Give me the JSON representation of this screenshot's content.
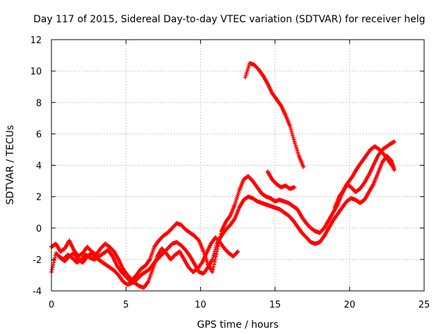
{
  "chart_data": {
    "type": "scatter",
    "title": "Day 117 of 2015, Sidereal Day-to-day VTEC variation (SDTVAR) for receiver helg",
    "xlabel": "GPS time / hours",
    "ylabel": "SDTVAR / TECUs",
    "xlim": [
      0,
      25
    ],
    "ylim": [
      -4,
      12
    ],
    "xticks": [
      "0",
      "5",
      "10",
      "15",
      "20",
      "25"
    ],
    "yticks": [
      "-4",
      "-2",
      "0",
      "2",
      "4",
      "6",
      "8",
      "10",
      "12"
    ],
    "grid": true,
    "marker": "plus",
    "color": "#ff0000",
    "series": [
      {
        "x": [
          0.0,
          0.3,
          0.6,
          0.9,
          1.2,
          1.5,
          1.8,
          2.1,
          2.4,
          2.7,
          3.0,
          3.3,
          3.6,
          3.9,
          4.2,
          4.5,
          4.8,
          5.1,
          5.4,
          5.7,
          6.0,
          6.3,
          6.6,
          6.9,
          7.2,
          7.5,
          7.8,
          8.1,
          8.4,
          8.7,
          9.0,
          9.3,
          9.6,
          9.9,
          10.2,
          10.5,
          10.8,
          11.1,
          11.4,
          11.7,
          12.0,
          12.3,
          12.6,
          12.9,
          13.2,
          13.5,
          13.8,
          14.1,
          14.4,
          14.7,
          15.0,
          15.3,
          15.6,
          15.9,
          16.2,
          16.5,
          16.8,
          17.1,
          17.4,
          17.7,
          18.0,
          18.3,
          18.6,
          18.9,
          19.2,
          19.5,
          19.8,
          20.1,
          20.4,
          20.7,
          21.0,
          21.3,
          21.6,
          21.9,
          22.2,
          22.5,
          22.8,
          23.0
        ],
        "y": [
          -1.2,
          -1.0,
          -1.5,
          -1.3,
          -0.8,
          -1.4,
          -1.8,
          -1.6,
          -1.2,
          -1.5,
          -1.7,
          -1.3,
          -1.0,
          -1.2,
          -1.5,
          -2.0,
          -2.6,
          -3.0,
          -3.3,
          -3.0,
          -2.6,
          -2.4,
          -2.0,
          -1.2,
          -0.8,
          -0.5,
          -0.3,
          0.0,
          0.3,
          0.2,
          -0.1,
          -0.3,
          -0.5,
          -0.8,
          -1.5,
          -2.3,
          -2.8,
          -1.5,
          -0.2,
          0.4,
          0.8,
          1.5,
          2.4,
          3.1,
          3.3,
          3.0,
          2.6,
          2.2,
          2.0,
          1.9,
          1.7,
          1.8,
          1.7,
          1.6,
          1.4,
          1.2,
          0.7,
          0.3,
          0.0,
          -0.2,
          -0.3,
          0.0,
          0.5,
          1.0,
          1.5,
          2.2,
          2.8,
          2.6,
          2.3,
          2.5,
          2.9,
          3.4,
          4.0,
          4.6,
          5.0,
          5.2,
          5.4,
          5.5
        ]
      },
      {
        "x": [
          0.0,
          0.3,
          0.6,
          0.9,
          1.2,
          1.5,
          1.8,
          2.1,
          2.4,
          2.7,
          3.0,
          3.3,
          3.6,
          3.9,
          4.2,
          4.5,
          4.8,
          5.1,
          5.4,
          5.7,
          6.0,
          6.3,
          6.6,
          6.9,
          7.2,
          7.5,
          7.8,
          8.1,
          8.4,
          8.7,
          9.0,
          9.3,
          9.6,
          9.9,
          10.2,
          10.5,
          10.8,
          11.1,
          11.4,
          11.7,
          12.0,
          12.3,
          12.6,
          12.9,
          13.2,
          13.5,
          13.8,
          14.1,
          14.4,
          14.7,
          15.0,
          15.3,
          15.6,
          15.9,
          16.2,
          16.5,
          16.8,
          17.1,
          17.4,
          17.7,
          18.0,
          18.3,
          18.6,
          18.9,
          19.2,
          19.5,
          19.8,
          20.1,
          20.4,
          20.7,
          21.0,
          21.3,
          21.6,
          21.9,
          22.2,
          22.5,
          22.8,
          23.0
        ],
        "y": [
          -2.8,
          -1.6,
          -1.9,
          -2.1,
          -1.8,
          -1.6,
          -2.0,
          -2.2,
          -1.8,
          -1.6,
          -1.9,
          -2.1,
          -2.3,
          -2.5,
          -2.7,
          -3.0,
          -3.4,
          -3.6,
          -3.5,
          -3.3,
          -3.0,
          -2.8,
          -2.6,
          -2.2,
          -1.9,
          -1.6,
          -1.3,
          -1.0,
          -0.9,
          -1.1,
          -1.4,
          -1.8,
          -2.3,
          -2.8,
          -2.9,
          -2.5,
          -2.0,
          -1.0,
          -0.5,
          -0.1,
          0.2,
          0.6,
          1.3,
          1.8,
          2.0,
          1.9,
          1.7,
          1.6,
          1.5,
          1.4,
          1.3,
          1.2,
          1.0,
          0.8,
          0.5,
          0.1,
          -0.3,
          -0.6,
          -0.9,
          -1.0,
          -0.9,
          -0.5,
          0.0,
          0.5,
          0.9,
          1.3,
          1.7,
          1.9,
          1.8,
          1.6,
          1.8,
          2.3,
          2.8,
          3.5,
          4.2,
          4.6,
          4.3,
          3.7
        ]
      },
      {
        "x": [
          0.5,
          0.8,
          1.1,
          1.4,
          1.7,
          2.0,
          2.3,
          2.6,
          2.9,
          3.2,
          3.5,
          3.8,
          4.1,
          4.4,
          4.7,
          5.0,
          5.3,
          5.6,
          5.9,
          6.2,
          6.5,
          6.8,
          7.1,
          7.4,
          7.7,
          8.0,
          8.3,
          8.6,
          8.9,
          9.2,
          9.5,
          9.8,
          10.1,
          10.4,
          10.7,
          11.0,
          11.3,
          11.6,
          11.9,
          12.2,
          12.5
        ],
        "y": [
          -1.8,
          -2.0,
          -1.7,
          -1.9,
          -2.2,
          -2.0,
          -1.7,
          -1.9,
          -2.0,
          -1.8,
          -1.6,
          -1.4,
          -1.8,
          -2.4,
          -2.8,
          -3.1,
          -3.4,
          -3.5,
          -3.7,
          -3.8,
          -3.4,
          -2.6,
          -1.8,
          -1.3,
          -1.6,
          -2.0,
          -1.7,
          -1.5,
          -2.0,
          -2.5,
          -2.8,
          -2.6,
          -2.2,
          -1.6,
          -1.0,
          -0.6,
          -0.9,
          -1.3,
          -1.6,
          -1.8,
          -1.5
        ]
      },
      {
        "x": [
          13.0,
          13.3,
          13.6,
          13.9,
          14.2,
          14.5,
          14.8,
          15.1,
          15.4,
          15.7,
          16.0,
          16.3,
          16.6,
          16.9
        ],
        "y": [
          9.6,
          10.5,
          10.4,
          10.1,
          9.7,
          9.2,
          8.6,
          8.2,
          7.8,
          7.2,
          6.5,
          5.5,
          4.6,
          3.9
        ]
      },
      {
        "x": [
          14.5,
          14.8,
          15.1,
          15.4,
          15.7,
          16.0,
          16.3
        ],
        "y": [
          3.6,
          3.1,
          2.8,
          2.6,
          2.7,
          2.5,
          2.6
        ]
      },
      {
        "x": [
          19.0,
          19.3,
          19.6,
          19.9,
          20.2,
          20.5,
          20.8,
          21.1,
          21.4,
          21.7,
          22.0,
          22.3,
          22.6,
          22.9
        ],
        "y": [
          1.3,
          2.0,
          2.4,
          2.9,
          3.3,
          3.8,
          4.2,
          4.6,
          5.0,
          5.2,
          5.0,
          4.7,
          4.3,
          3.9
        ]
      }
    ]
  }
}
